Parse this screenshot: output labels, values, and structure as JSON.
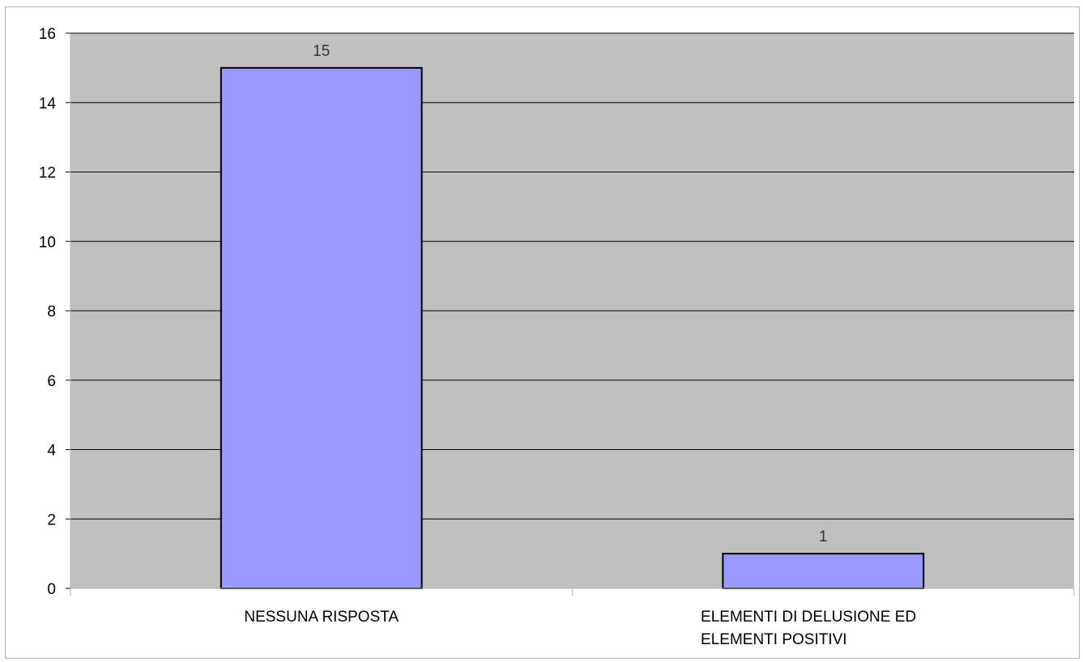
{
  "chart_data": {
    "type": "bar",
    "categories": [
      [
        "NESSUNA RISPOSTA"
      ],
      [
        "ELEMENTI DI DELUSIONE ED",
        "ELEMENTI POSITIVI"
      ]
    ],
    "values": [
      15,
      1
    ],
    "data_labels": [
      "15",
      "1"
    ],
    "ylim": [
      0,
      16
    ],
    "yticks": [
      0,
      2,
      4,
      6,
      8,
      10,
      12,
      14,
      16
    ],
    "grid": true,
    "colors": {
      "plot_background": "#c0c0c0",
      "bar_fill": "#9999ff",
      "bar_stroke": "#000000",
      "gridline": "#000000"
    }
  }
}
